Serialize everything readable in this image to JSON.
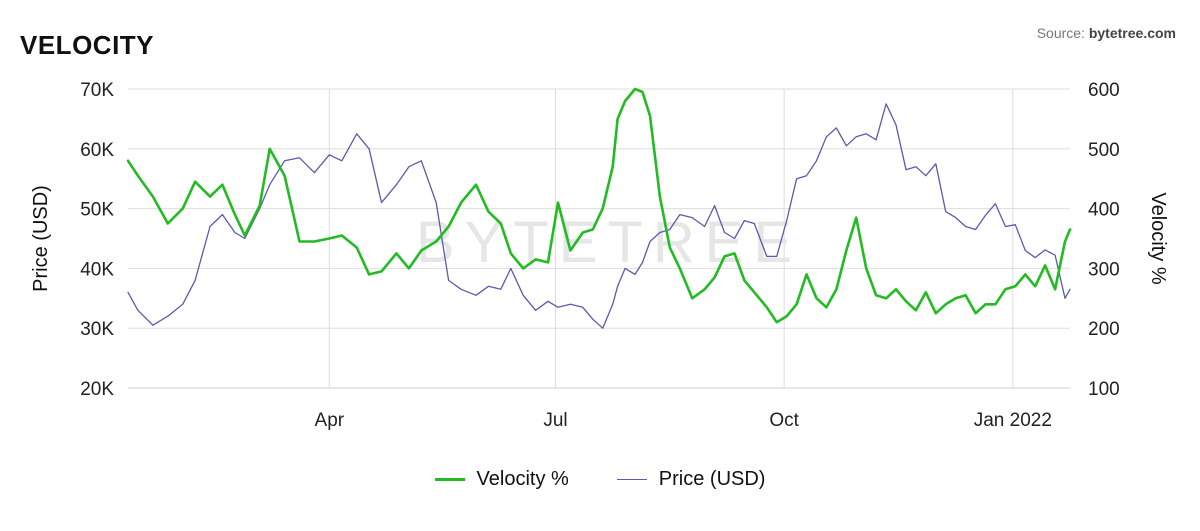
{
  "header": {
    "title": "VELOCITY",
    "source_label": "Source: ",
    "source_brand": "bytetree.com"
  },
  "watermark": "BYTETREE",
  "colors": {
    "velocity": "#22bb22",
    "price": "#5a5ab0",
    "grid": "#dddddd"
  },
  "chart_data": {
    "type": "line",
    "xlabel": "",
    "x_ticks": [
      {
        "label": "Apr",
        "date": "2021-04-01"
      },
      {
        "label": "Jul",
        "date": "2021-07-01"
      },
      {
        "label": "Oct",
        "date": "2021-10-01"
      },
      {
        "label": "Jan 2022",
        "date": "2022-01-01"
      }
    ],
    "x_range": [
      "2021-01-10",
      "2022-01-24"
    ],
    "y_left": {
      "label": "Price (USD)",
      "range": [
        20000,
        70000
      ],
      "ticks": [
        "20K",
        "30K",
        "40K",
        "50K",
        "60K",
        "70K"
      ]
    },
    "y_right": {
      "label": "Velocity %",
      "range": [
        100,
        600
      ],
      "ticks": [
        "100",
        "200",
        "300",
        "400",
        "500",
        "600"
      ]
    },
    "grid": true,
    "legend_position": "bottom",
    "series": [
      {
        "name": "Velocity %",
        "axis": "right",
        "points": [
          [
            "2021-01-10",
            480
          ],
          [
            "2021-01-14",
            455
          ],
          [
            "2021-01-20",
            420
          ],
          [
            "2021-01-26",
            375
          ],
          [
            "2021-02-01",
            400
          ],
          [
            "2021-02-06",
            445
          ],
          [
            "2021-02-12",
            420
          ],
          [
            "2021-02-17",
            440
          ],
          [
            "2021-02-22",
            390
          ],
          [
            "2021-02-26",
            355
          ],
          [
            "2021-03-04",
            405
          ],
          [
            "2021-03-08",
            500
          ],
          [
            "2021-03-14",
            455
          ],
          [
            "2021-03-20",
            345
          ],
          [
            "2021-03-26",
            345
          ],
          [
            "2021-04-01",
            350
          ],
          [
            "2021-04-06",
            355
          ],
          [
            "2021-04-12",
            335
          ],
          [
            "2021-04-17",
            290
          ],
          [
            "2021-04-22",
            295
          ],
          [
            "2021-04-28",
            325
          ],
          [
            "2021-05-03",
            300
          ],
          [
            "2021-05-08",
            330
          ],
          [
            "2021-05-14",
            345
          ],
          [
            "2021-05-19",
            370
          ],
          [
            "2021-05-24",
            410
          ],
          [
            "2021-05-30",
            440
          ],
          [
            "2021-06-04",
            395
          ],
          [
            "2021-06-09",
            375
          ],
          [
            "2021-06-13",
            325
          ],
          [
            "2021-06-18",
            300
          ],
          [
            "2021-06-23",
            315
          ],
          [
            "2021-06-28",
            310
          ],
          [
            "2021-07-02",
            410
          ],
          [
            "2021-07-07",
            330
          ],
          [
            "2021-07-12",
            360
          ],
          [
            "2021-07-16",
            365
          ],
          [
            "2021-07-20",
            400
          ],
          [
            "2021-07-24",
            470
          ],
          [
            "2021-07-26",
            550
          ],
          [
            "2021-07-29",
            580
          ],
          [
            "2021-08-02",
            600
          ],
          [
            "2021-08-05",
            595
          ],
          [
            "2021-08-08",
            555
          ],
          [
            "2021-08-12",
            420
          ],
          [
            "2021-08-16",
            335
          ],
          [
            "2021-08-20",
            300
          ],
          [
            "2021-08-25",
            250
          ],
          [
            "2021-08-30",
            265
          ],
          [
            "2021-09-03",
            285
          ],
          [
            "2021-09-07",
            320
          ],
          [
            "2021-09-11",
            325
          ],
          [
            "2021-09-15",
            280
          ],
          [
            "2021-09-19",
            260
          ],
          [
            "2021-09-24",
            235
          ],
          [
            "2021-09-28",
            210
          ],
          [
            "2021-10-02",
            220
          ],
          [
            "2021-10-06",
            240
          ],
          [
            "2021-10-10",
            290
          ],
          [
            "2021-10-14",
            250
          ],
          [
            "2021-10-18",
            235
          ],
          [
            "2021-10-22",
            265
          ],
          [
            "2021-10-26",
            330
          ],
          [
            "2021-10-30",
            385
          ],
          [
            "2021-11-03",
            300
          ],
          [
            "2021-11-07",
            255
          ],
          [
            "2021-11-11",
            250
          ],
          [
            "2021-11-15",
            265
          ],
          [
            "2021-11-19",
            245
          ],
          [
            "2021-11-23",
            230
          ],
          [
            "2021-11-27",
            260
          ],
          [
            "2021-12-01",
            225
          ],
          [
            "2021-12-05",
            240
          ],
          [
            "2021-12-09",
            250
          ],
          [
            "2021-12-13",
            255
          ],
          [
            "2021-12-17",
            225
          ],
          [
            "2021-12-21",
            240
          ],
          [
            "2021-12-25",
            240
          ],
          [
            "2021-12-29",
            265
          ],
          [
            "2022-01-02",
            270
          ],
          [
            "2022-01-06",
            290
          ],
          [
            "2022-01-10",
            270
          ],
          [
            "2022-01-14",
            305
          ],
          [
            "2022-01-18",
            265
          ],
          [
            "2022-01-22",
            345
          ],
          [
            "2022-01-24",
            365
          ]
        ]
      },
      {
        "name": "Price (USD)",
        "axis": "left",
        "points": [
          [
            "2021-01-10",
            36000
          ],
          [
            "2021-01-14",
            33000
          ],
          [
            "2021-01-20",
            30500
          ],
          [
            "2021-01-26",
            32000
          ],
          [
            "2021-02-01",
            34000
          ],
          [
            "2021-02-06",
            38000
          ],
          [
            "2021-02-12",
            47000
          ],
          [
            "2021-02-17",
            49000
          ],
          [
            "2021-02-22",
            46000
          ],
          [
            "2021-02-26",
            45000
          ],
          [
            "2021-03-04",
            50000
          ],
          [
            "2021-03-08",
            54000
          ],
          [
            "2021-03-14",
            58000
          ],
          [
            "2021-03-20",
            58500
          ],
          [
            "2021-03-26",
            56000
          ],
          [
            "2021-04-01",
            59000
          ],
          [
            "2021-04-06",
            58000
          ],
          [
            "2021-04-12",
            62500
          ],
          [
            "2021-04-17",
            60000
          ],
          [
            "2021-04-22",
            51000
          ],
          [
            "2021-04-28",
            54000
          ],
          [
            "2021-05-03",
            57000
          ],
          [
            "2021-05-08",
            58000
          ],
          [
            "2021-05-14",
            51000
          ],
          [
            "2021-05-19",
            38000
          ],
          [
            "2021-05-24",
            36500
          ],
          [
            "2021-05-30",
            35500
          ],
          [
            "2021-06-04",
            37000
          ],
          [
            "2021-06-09",
            36500
          ],
          [
            "2021-06-13",
            40000
          ],
          [
            "2021-06-18",
            35500
          ],
          [
            "2021-06-23",
            33000
          ],
          [
            "2021-06-28",
            34500
          ],
          [
            "2021-07-02",
            33500
          ],
          [
            "2021-07-07",
            34000
          ],
          [
            "2021-07-12",
            33500
          ],
          [
            "2021-07-16",
            31500
          ],
          [
            "2021-07-20",
            30000
          ],
          [
            "2021-07-24",
            34000
          ],
          [
            "2021-07-26",
            37000
          ],
          [
            "2021-07-29",
            40000
          ],
          [
            "2021-08-02",
            39000
          ],
          [
            "2021-08-05",
            41000
          ],
          [
            "2021-08-08",
            44500
          ],
          [
            "2021-08-12",
            46000
          ],
          [
            "2021-08-16",
            46500
          ],
          [
            "2021-08-20",
            49000
          ],
          [
            "2021-08-25",
            48500
          ],
          [
            "2021-08-30",
            47000
          ],
          [
            "2021-09-03",
            50500
          ],
          [
            "2021-09-07",
            46000
          ],
          [
            "2021-09-11",
            45000
          ],
          [
            "2021-09-15",
            48000
          ],
          [
            "2021-09-19",
            47500
          ],
          [
            "2021-09-24",
            42000
          ],
          [
            "2021-09-28",
            42000
          ],
          [
            "2021-10-02",
            48000
          ],
          [
            "2021-10-06",
            55000
          ],
          [
            "2021-10-10",
            55500
          ],
          [
            "2021-10-14",
            58000
          ],
          [
            "2021-10-18",
            62000
          ],
          [
            "2021-10-22",
            63500
          ],
          [
            "2021-10-26",
            60500
          ],
          [
            "2021-10-30",
            62000
          ],
          [
            "2021-11-03",
            62500
          ],
          [
            "2021-11-07",
            61500
          ],
          [
            "2021-11-11",
            67500
          ],
          [
            "2021-11-15",
            64000
          ],
          [
            "2021-11-19",
            56500
          ],
          [
            "2021-11-23",
            57000
          ],
          [
            "2021-11-27",
            55500
          ],
          [
            "2021-12-01",
            57500
          ],
          [
            "2021-12-05",
            49500
          ],
          [
            "2021-12-09",
            48500
          ],
          [
            "2021-12-13",
            47000
          ],
          [
            "2021-12-17",
            46500
          ],
          [
            "2021-12-21",
            48900
          ],
          [
            "2021-12-25",
            50800
          ],
          [
            "2021-12-29",
            47000
          ],
          [
            "2022-01-02",
            47300
          ],
          [
            "2022-01-06",
            43000
          ],
          [
            "2022-01-10",
            41800
          ],
          [
            "2022-01-14",
            43100
          ],
          [
            "2022-01-18",
            42200
          ],
          [
            "2022-01-22",
            35000
          ],
          [
            "2022-01-24",
            36500
          ]
        ]
      }
    ]
  }
}
